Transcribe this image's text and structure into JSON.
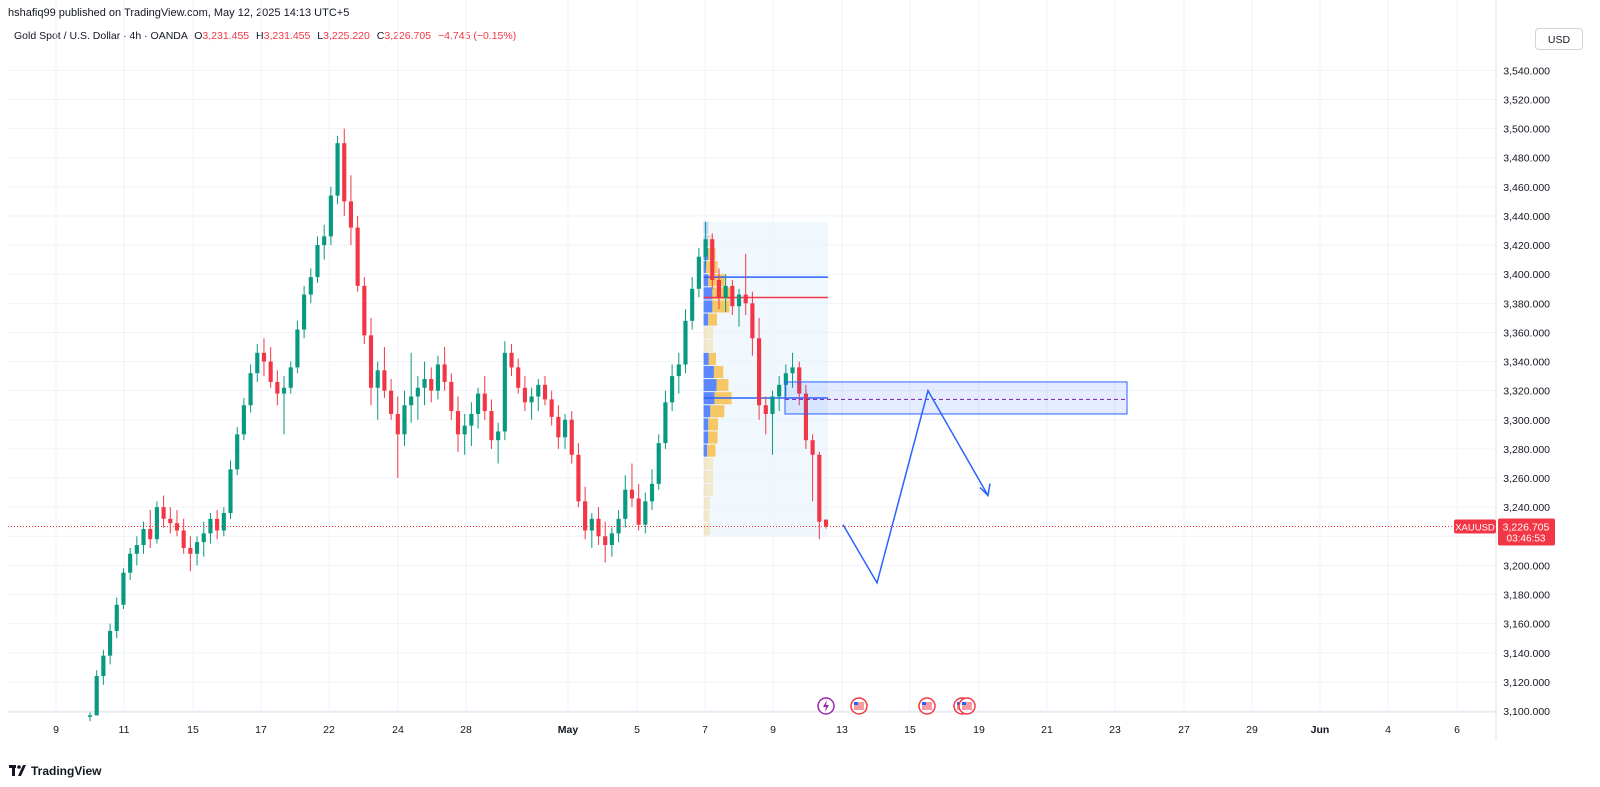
{
  "header": {
    "publish_line": "hshafiq99 published on TradingView.com, May 12, 2025 14:13 UTC+5"
  },
  "legend": {
    "symbol": "Gold Spot / U.S. Dollar · 4h · OANDA",
    "open_label": "O",
    "open": "3,231.455",
    "high_label": "H",
    "high": "3,231.455",
    "low_label": "L",
    "low": "3,225.220",
    "close_label": "C",
    "close": "3,226.705",
    "change": "−4.745 (−0.15%)"
  },
  "currency_button": "USD",
  "brand": "TradingView",
  "colors": {
    "up": "#089981",
    "down": "#f23645",
    "drawing": "#2962ff",
    "vp_up": "#2962ff",
    "vp_down": "#f7b731"
  },
  "chart_data": {
    "type": "candlestick",
    "timeframe": "4h",
    "y_ticks": [
      "3,100.000",
      "3,120.000",
      "3,140.000",
      "3,160.000",
      "3,180.000",
      "3,200.000",
      "3,220.000",
      "3,240.000",
      "3,260.000",
      "3,280.000",
      "3,300.000",
      "3,320.000",
      "3,340.000",
      "3,360.000",
      "3,380.000",
      "3,400.000",
      "3,420.000",
      "3,440.000",
      "3,460.000",
      "3,480.000",
      "3,500.000",
      "3,520.000",
      "3,540.000"
    ],
    "ylim": [
      3090,
      3552
    ],
    "x_ticks": [
      "9",
      "11",
      "15",
      "17",
      "22",
      "24",
      "28",
      "May",
      "5",
      "7",
      "9",
      "13",
      "15",
      "19",
      "21",
      "23",
      "27",
      "29",
      "Jun",
      "4",
      "6"
    ],
    "current_price": {
      "symbol": "XAUUSD",
      "value": 3226.705,
      "label": "3,226.705",
      "countdown": "03:46:53"
    },
    "ohlc": [
      [
        3096,
        3099,
        3093,
        3097
      ],
      [
        3097,
        3128,
        3097,
        3124
      ],
      [
        3124,
        3142,
        3118,
        3138
      ],
      [
        3138,
        3160,
        3132,
        3155
      ],
      [
        3155,
        3178,
        3150,
        3173
      ],
      [
        3173,
        3198,
        3170,
        3195
      ],
      [
        3195,
        3212,
        3190,
        3208
      ],
      [
        3208,
        3220,
        3200,
        3214
      ],
      [
        3214,
        3230,
        3208,
        3225
      ],
      [
        3225,
        3238,
        3212,
        3218
      ],
      [
        3218,
        3244,
        3215,
        3240
      ],
      [
        3240,
        3248,
        3226,
        3232
      ],
      [
        3232,
        3240,
        3222,
        3229
      ],
      [
        3229,
        3238,
        3220,
        3224
      ],
      [
        3224,
        3232,
        3208,
        3212
      ],
      [
        3212,
        3220,
        3196,
        3208
      ],
      [
        3208,
        3220,
        3200,
        3216
      ],
      [
        3216,
        3230,
        3206,
        3222
      ],
      [
        3222,
        3236,
        3215,
        3232
      ],
      [
        3232,
        3238,
        3218,
        3224
      ],
      [
        3224,
        3240,
        3220,
        3236
      ],
      [
        3236,
        3272,
        3232,
        3266
      ],
      [
        3266,
        3295,
        3262,
        3290
      ],
      [
        3290,
        3315,
        3286,
        3310
      ],
      [
        3310,
        3338,
        3305,
        3332
      ],
      [
        3332,
        3352,
        3326,
        3346
      ],
      [
        3346,
        3356,
        3330,
        3340
      ],
      [
        3340,
        3350,
        3322,
        3326
      ],
      [
        3326,
        3334,
        3310,
        3318
      ],
      [
        3318,
        3330,
        3290,
        3322
      ],
      [
        3322,
        3340,
        3318,
        3336
      ],
      [
        3336,
        3368,
        3332,
        3362
      ],
      [
        3362,
        3392,
        3356,
        3386
      ],
      [
        3386,
        3404,
        3380,
        3398
      ],
      [
        3398,
        3426,
        3394,
        3420
      ],
      [
        3420,
        3434,
        3410,
        3426
      ],
      [
        3426,
        3460,
        3420,
        3454
      ],
      [
        3454,
        3495,
        3448,
        3490
      ],
      [
        3490,
        3500,
        3440,
        3450
      ],
      [
        3450,
        3468,
        3420,
        3432
      ],
      [
        3432,
        3440,
        3388,
        3392
      ],
      [
        3392,
        3398,
        3352,
        3358
      ],
      [
        3358,
        3370,
        3310,
        3322
      ],
      [
        3322,
        3340,
        3300,
        3334
      ],
      [
        3334,
        3350,
        3315,
        3320
      ],
      [
        3320,
        3328,
        3300,
        3304
      ],
      [
        3304,
        3316,
        3260,
        3290
      ],
      [
        3290,
        3320,
        3282,
        3310
      ],
      [
        3310,
        3346,
        3298,
        3316
      ],
      [
        3316,
        3330,
        3300,
        3322
      ],
      [
        3322,
        3340,
        3310,
        3328
      ],
      [
        3328,
        3336,
        3312,
        3320
      ],
      [
        3320,
        3344,
        3314,
        3338
      ],
      [
        3338,
        3350,
        3320,
        3326
      ],
      [
        3326,
        3332,
        3300,
        3306
      ],
      [
        3306,
        3316,
        3278,
        3290
      ],
      [
        3290,
        3304,
        3276,
        3296
      ],
      [
        3296,
        3312,
        3282,
        3304
      ],
      [
        3304,
        3322,
        3294,
        3318
      ],
      [
        3318,
        3330,
        3300,
        3306
      ],
      [
        3306,
        3314,
        3280,
        3286
      ],
      [
        3286,
        3298,
        3270,
        3292
      ],
      [
        3292,
        3354,
        3286,
        3346
      ],
      [
        3346,
        3352,
        3330,
        3336
      ],
      [
        3336,
        3342,
        3318,
        3322
      ],
      [
        3322,
        3330,
        3306,
        3312
      ],
      [
        3312,
        3322,
        3300,
        3316
      ],
      [
        3316,
        3328,
        3306,
        3324
      ],
      [
        3324,
        3330,
        3310,
        3314
      ],
      [
        3314,
        3320,
        3296,
        3302
      ],
      [
        3302,
        3310,
        3280,
        3288
      ],
      [
        3288,
        3304,
        3280,
        3300
      ],
      [
        3300,
        3306,
        3270,
        3276
      ],
      [
        3276,
        3284,
        3240,
        3244
      ],
      [
        3244,
        3254,
        3218,
        3224
      ],
      [
        3224,
        3236,
        3212,
        3232
      ],
      [
        3232,
        3240,
        3214,
        3220
      ],
      [
        3220,
        3230,
        3202,
        3214
      ],
      [
        3214,
        3226,
        3206,
        3222
      ],
      [
        3222,
        3238,
        3216,
        3232
      ],
      [
        3232,
        3262,
        3226,
        3252
      ],
      [
        3252,
        3270,
        3240,
        3246
      ],
      [
        3246,
        3256,
        3224,
        3228
      ],
      [
        3228,
        3250,
        3222,
        3244
      ],
      [
        3244,
        3266,
        3238,
        3256
      ],
      [
        3256,
        3290,
        3252,
        3284
      ],
      [
        3284,
        3320,
        3280,
        3312
      ],
      [
        3312,
        3338,
        3306,
        3330
      ],
      [
        3330,
        3346,
        3318,
        3338
      ],
      [
        3338,
        3376,
        3332,
        3368
      ],
      [
        3368,
        3398,
        3362,
        3390
      ],
      [
        3390,
        3418,
        3384,
        3412
      ],
      [
        3412,
        3436,
        3404,
        3424
      ],
      [
        3424,
        3428,
        3390,
        3396
      ],
      [
        3396,
        3404,
        3376,
        3384
      ],
      [
        3384,
        3400,
        3374,
        3392
      ],
      [
        3392,
        3396,
        3372,
        3378
      ],
      [
        3378,
        3390,
        3364,
        3386
      ],
      [
        3386,
        3414,
        3372,
        3380
      ],
      [
        3380,
        3388,
        3344,
        3356
      ],
      [
        3356,
        3370,
        3300,
        3310
      ],
      [
        3310,
        3316,
        3290,
        3304
      ],
      [
        3304,
        3320,
        3276,
        3316
      ],
      [
        3316,
        3330,
        3306,
        3324
      ],
      [
        3324,
        3338,
        3316,
        3332
      ],
      [
        3332,
        3346,
        3322,
        3336
      ],
      [
        3336,
        3340,
        3310,
        3318
      ],
      [
        3318,
        3324,
        3280,
        3286
      ],
      [
        3286,
        3290,
        3244,
        3276
      ],
      [
        3276,
        3278,
        3218,
        3230
      ],
      [
        3231.455,
        3231.455,
        3225.22,
        3226.705
      ]
    ],
    "volume_profile_range": {
      "top": 3436,
      "bottom": 3220
    },
    "lines": [
      {
        "color": "#2962ff",
        "price": 3398
      },
      {
        "color": "#f23645",
        "price": 3384
      },
      {
        "color": "#2962ff",
        "price": 3315
      }
    ],
    "zone": {
      "top": 3326,
      "bottom": 3304,
      "mid": 3314
    },
    "projection_path": [
      [
        0,
        3228
      ],
      [
        1,
        3188
      ],
      [
        2,
        3320
      ],
      [
        3,
        3248
      ]
    ]
  }
}
